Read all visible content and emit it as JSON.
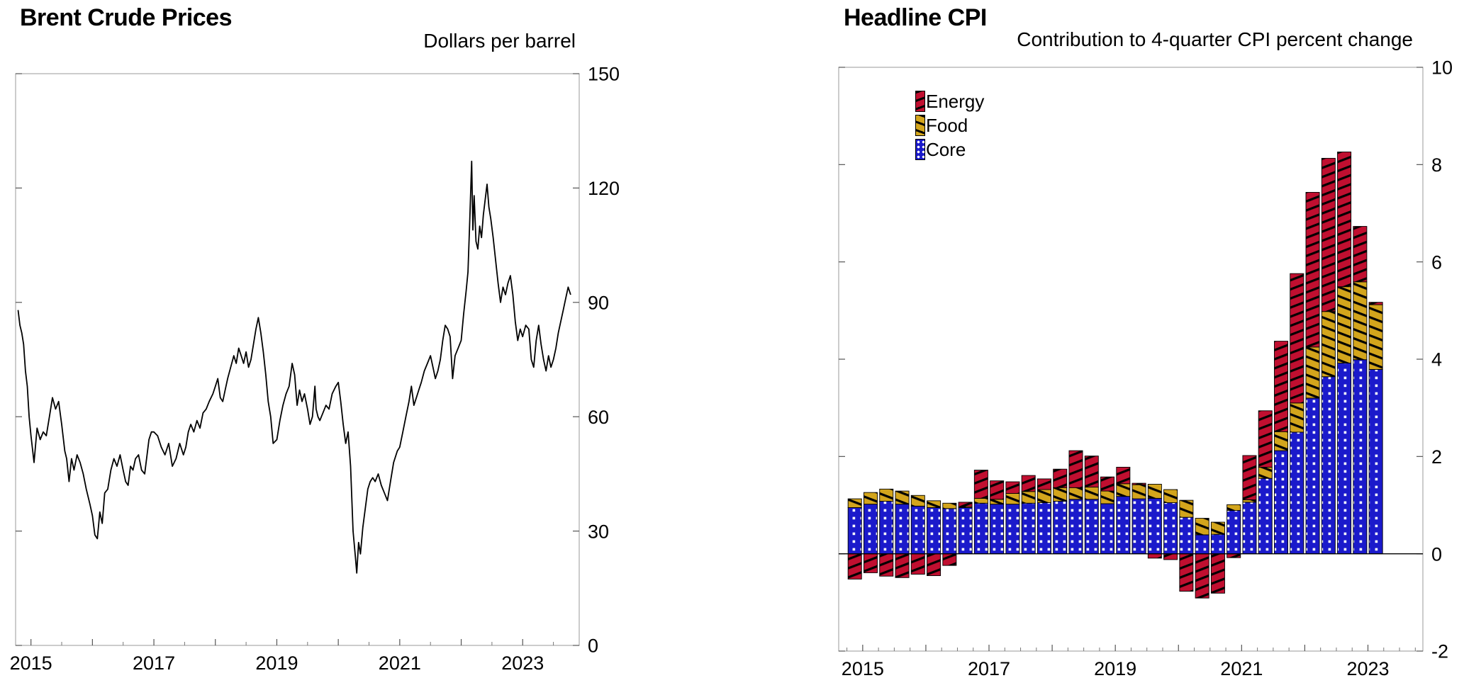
{
  "page": {
    "background": "#ffffff"
  },
  "legend": {
    "energy_label": "Energy",
    "food_label": "Food",
    "core_label": "Core"
  },
  "colors": {
    "energy": "#c00f30",
    "food": "#d3a51c",
    "core": "#1b1acb",
    "line": "#000000",
    "frame": "#9a9a9a",
    "zero_line": "#000000"
  },
  "chart_data": [
    {
      "type": "line",
      "title": "Brent Crude Prices",
      "ylabel": "Dollars per barrel",
      "xlabel": "",
      "ylim": [
        0,
        150
      ],
      "y_ticks": [
        0,
        30,
        60,
        90,
        120,
        150
      ],
      "xlim": [
        2014.75,
        2023.92
      ],
      "x_year_ticks": [
        2015,
        2016,
        2017,
        2018,
        2019,
        2020,
        2021,
        2022,
        2023
      ],
      "x_labeled_years": [
        "2015",
        "2017",
        "2019",
        "2021",
        "2023"
      ],
      "grid": false,
      "legend_position": "none",
      "x": [
        2014.79,
        2014.82,
        2014.85,
        2014.88,
        2014.91,
        2014.94,
        2014.97,
        2015.0,
        2015.05,
        2015.1,
        2015.15,
        2015.2,
        2015.25,
        2015.3,
        2015.35,
        2015.4,
        2015.45,
        2015.5,
        2015.55,
        2015.58,
        2015.62,
        2015.66,
        2015.7,
        2015.75,
        2015.8,
        2015.85,
        2015.9,
        2015.96,
        2016.0,
        2016.04,
        2016.08,
        2016.12,
        2016.16,
        2016.2,
        2016.25,
        2016.3,
        2016.35,
        2016.4,
        2016.45,
        2016.5,
        2016.54,
        2016.58,
        2016.62,
        2016.66,
        2016.7,
        2016.75,
        2016.8,
        2016.85,
        2016.92,
        2016.96,
        2017.0,
        2017.06,
        2017.12,
        2017.18,
        2017.24,
        2017.3,
        2017.36,
        2017.42,
        2017.48,
        2017.52,
        2017.56,
        2017.6,
        2017.65,
        2017.7,
        2017.75,
        2017.8,
        2017.85,
        2017.9,
        2017.96,
        2018.0,
        2018.04,
        2018.08,
        2018.12,
        2018.16,
        2018.2,
        2018.25,
        2018.3,
        2018.34,
        2018.38,
        2018.42,
        2018.46,
        2018.5,
        2018.54,
        2018.58,
        2018.62,
        2018.66,
        2018.7,
        2018.74,
        2018.78,
        2018.82,
        2018.86,
        2018.9,
        2018.94,
        2019.0,
        2019.05,
        2019.1,
        2019.15,
        2019.2,
        2019.25,
        2019.29,
        2019.33,
        2019.37,
        2019.41,
        2019.45,
        2019.5,
        2019.54,
        2019.58,
        2019.62,
        2019.64,
        2019.67,
        2019.7,
        2019.75,
        2019.8,
        2019.85,
        2019.9,
        2019.96,
        2020.0,
        2020.04,
        2020.08,
        2020.12,
        2020.16,
        2020.2,
        2020.24,
        2020.28,
        2020.3,
        2020.33,
        2020.36,
        2020.4,
        2020.44,
        2020.48,
        2020.52,
        2020.56,
        2020.6,
        2020.65,
        2020.7,
        2020.75,
        2020.8,
        2020.85,
        2020.9,
        2020.96,
        2021.0,
        2021.05,
        2021.1,
        2021.15,
        2021.19,
        2021.23,
        2021.27,
        2021.31,
        2021.35,
        2021.4,
        2021.45,
        2021.5,
        2021.54,
        2021.58,
        2021.62,
        2021.66,
        2021.7,
        2021.74,
        2021.78,
        2021.82,
        2021.86,
        2021.9,
        2021.95,
        2022.0,
        2022.04,
        2022.08,
        2022.11,
        2022.14,
        2022.17,
        2022.19,
        2022.21,
        2022.24,
        2022.27,
        2022.3,
        2022.33,
        2022.36,
        2022.39,
        2022.42,
        2022.45,
        2022.48,
        2022.52,
        2022.56,
        2022.6,
        2022.64,
        2022.68,
        2022.72,
        2022.76,
        2022.8,
        2022.84,
        2022.88,
        2022.92,
        2022.96,
        2023.0,
        2023.05,
        2023.1,
        2023.14,
        2023.18,
        2023.22,
        2023.26,
        2023.3,
        2023.34,
        2023.38,
        2023.42,
        2023.46,
        2023.5,
        2023.54,
        2023.58,
        2023.62,
        2023.66,
        2023.7,
        2023.74,
        2023.78
      ],
      "y": [
        88,
        84,
        82,
        79,
        72,
        68,
        60,
        55,
        48,
        57,
        54,
        56,
        55,
        60,
        65,
        62,
        64,
        58,
        51,
        49,
        43,
        49,
        46,
        50,
        48,
        45,
        41,
        37,
        34,
        29,
        28,
        35,
        32,
        40,
        41,
        46,
        49,
        47,
        50,
        46,
        43,
        42,
        47,
        46,
        49,
        50,
        46,
        45,
        54,
        56,
        56,
        55,
        52,
        50,
        53,
        47,
        49,
        53,
        50,
        52,
        56,
        58,
        56,
        59,
        57,
        61,
        62,
        64,
        66,
        68,
        70,
        65,
        64,
        67,
        70,
        73,
        76,
        74,
        78,
        76,
        74,
        77,
        73,
        75,
        79,
        83,
        86,
        82,
        77,
        71,
        64,
        60,
        53,
        54,
        59,
        63,
        66,
        68,
        74,
        71,
        63,
        67,
        64,
        66,
        62,
        58,
        60,
        68,
        62,
        60,
        59,
        61,
        63,
        62,
        66,
        68,
        69,
        64,
        58,
        53,
        56,
        47,
        30,
        23,
        19,
        27,
        24,
        31,
        36,
        41,
        43,
        44,
        43,
        45,
        42,
        40,
        38,
        43,
        48,
        51,
        52,
        56,
        60,
        64,
        68,
        63,
        65,
        67,
        69,
        72,
        74,
        76,
        73,
        70,
        72,
        75,
        80,
        84,
        83,
        81,
        70,
        76,
        78,
        80,
        87,
        93,
        98,
        112,
        127,
        109,
        118,
        106,
        104,
        110,
        107,
        113,
        117,
        121,
        115,
        112,
        107,
        101,
        95,
        90,
        94,
        92,
        95,
        97,
        92,
        85,
        80,
        83,
        81,
        84,
        83,
        75,
        73,
        80,
        84,
        79,
        75,
        72,
        76,
        73,
        75,
        78,
        82,
        85,
        88,
        91,
        94,
        92
      ]
    },
    {
      "type": "stacked-bar",
      "title": "Headline CPI",
      "subtitle": "Contribution to 4-quarter CPI percent change",
      "ylim": [
        -2,
        10
      ],
      "y_ticks": [
        -2,
        0,
        2,
        4,
        6,
        8,
        10
      ],
      "xlim": [
        2014.62,
        2023.87
      ],
      "x_year_ticks": [
        2015,
        2016,
        2017,
        2018,
        2019,
        2020,
        2021,
        2022,
        2023
      ],
      "x_labeled_years": [
        "2015",
        "2017",
        "2019",
        "2021",
        "2023"
      ],
      "bar_start": 2014.75,
      "bar_quarter_width": 0.25,
      "grid": false,
      "legend_position": "top-left-inside",
      "quarters": [
        "2014Q4",
        "2015Q1",
        "2015Q2",
        "2015Q3",
        "2015Q4",
        "2016Q1",
        "2016Q2",
        "2016Q3",
        "2016Q4",
        "2017Q1",
        "2017Q2",
        "2017Q3",
        "2017Q4",
        "2018Q1",
        "2018Q2",
        "2018Q3",
        "2018Q4",
        "2019Q1",
        "2019Q2",
        "2019Q3",
        "2019Q4",
        "2020Q1",
        "2020Q2",
        "2020Q3",
        "2020Q4",
        "2021Q1",
        "2021Q2",
        "2021Q3",
        "2021Q4",
        "2022Q1",
        "2022Q2",
        "2022Q3",
        "2022Q4",
        "2023Q1"
      ],
      "series": [
        {
          "name": "Core",
          "color": "#1b1acb",
          "pattern": "white-dots",
          "values": [
            0.95,
            1.02,
            1.08,
            1.02,
            0.98,
            0.95,
            0.93,
            0.95,
            1.04,
            1.02,
            1.02,
            1.04,
            1.05,
            1.08,
            1.12,
            1.12,
            1.03,
            1.18,
            1.13,
            1.14,
            1.05,
            0.75,
            0.39,
            0.4,
            0.89,
            1.06,
            1.55,
            2.12,
            2.5,
            3.2,
            3.64,
            3.92,
            3.99,
            3.79
          ]
        },
        {
          "name": "Food",
          "color": "#d3a51c",
          "pattern": "black-diag-down",
          "values": [
            0.18,
            0.24,
            0.25,
            0.27,
            0.22,
            0.14,
            0.11,
            0.02,
            0.1,
            0.1,
            0.22,
            0.24,
            0.27,
            0.28,
            0.24,
            0.25,
            0.26,
            0.26,
            0.29,
            0.29,
            0.27,
            0.35,
            0.34,
            0.25,
            0.12,
            0.05,
            0.23,
            0.39,
            0.6,
            1.05,
            1.34,
            1.57,
            1.6,
            1.33
          ]
        },
        {
          "name": "Energy",
          "color": "#c00f30",
          "pattern": "black-diag-up",
          "values": [
            -0.52,
            -0.39,
            -0.46,
            -0.49,
            -0.42,
            -0.45,
            -0.24,
            0.09,
            0.58,
            0.38,
            0.24,
            0.33,
            0.22,
            0.38,
            0.76,
            0.64,
            0.29,
            0.34,
            0.03,
            -0.09,
            -0.12,
            -0.77,
            -0.91,
            -0.81,
            -0.08,
            0.91,
            1.16,
            1.86,
            2.66,
            3.18,
            3.15,
            2.77,
            1.14,
            0.05
          ]
        }
      ]
    }
  ]
}
